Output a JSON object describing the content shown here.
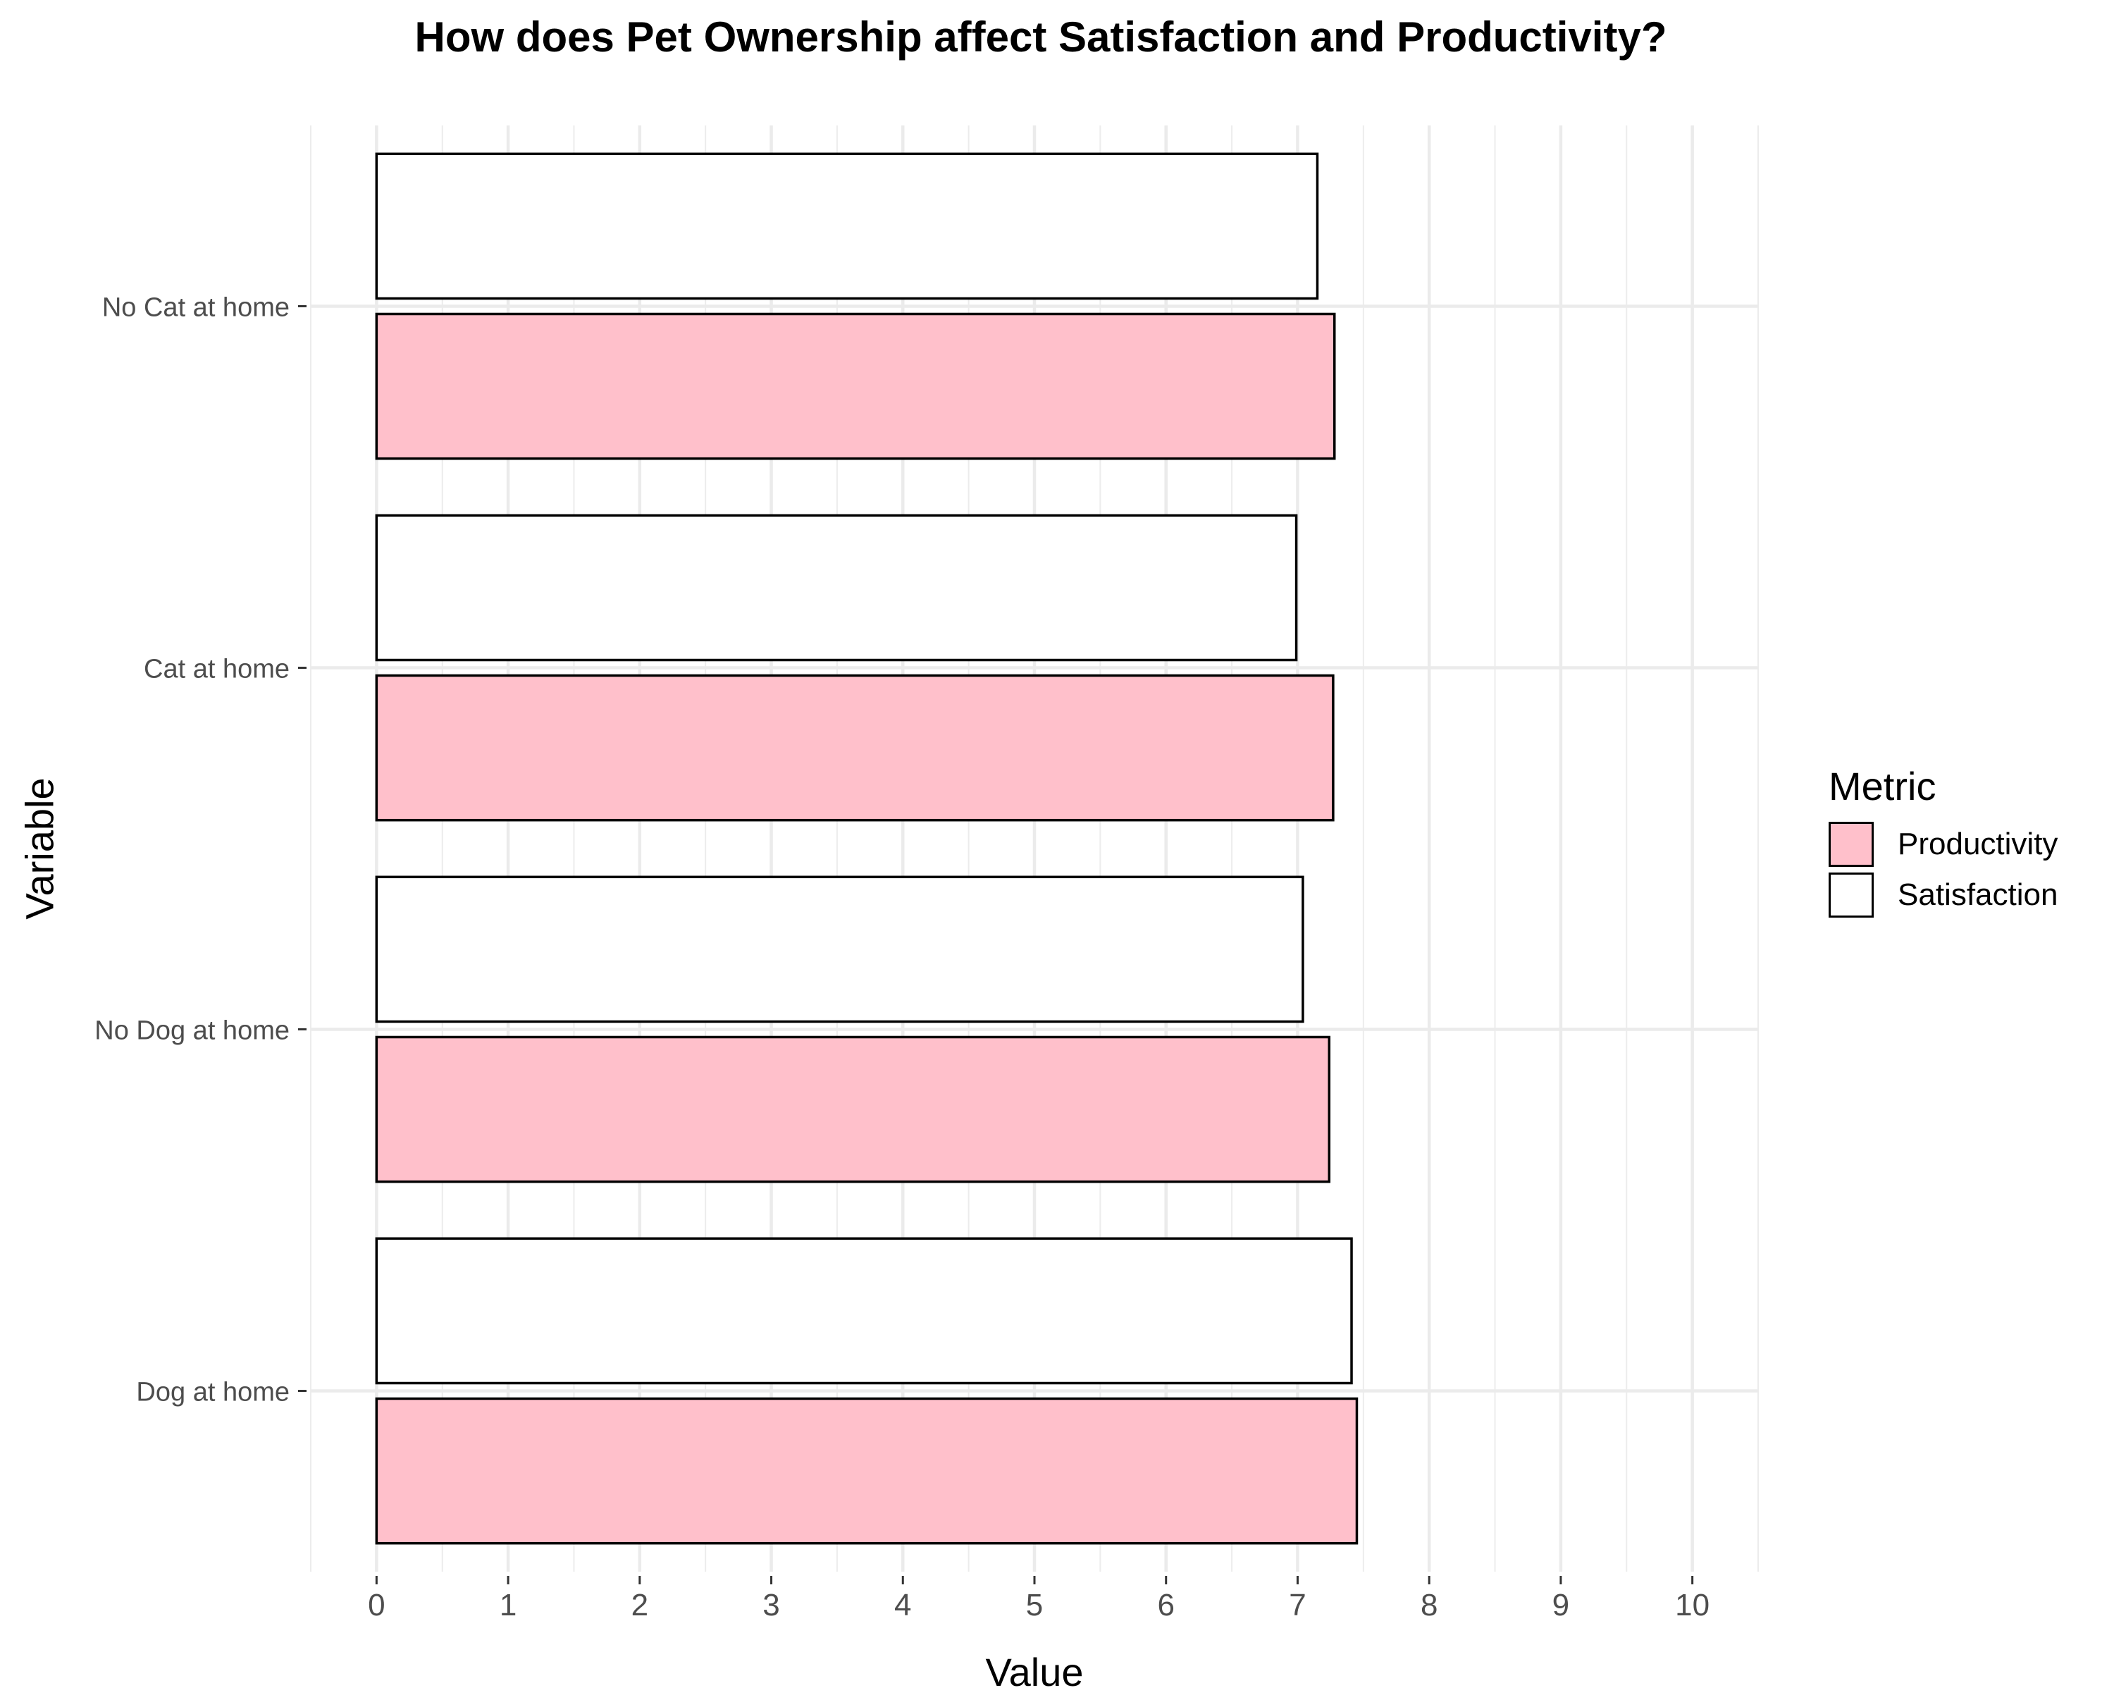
{
  "chart_data": {
    "type": "bar",
    "orientation": "horizontal",
    "title": "How does Pet Ownership affect Satisfaction and Productivity?",
    "xlabel": "Value",
    "ylabel": "Variable",
    "categories": [
      "No Cat at home",
      "Cat at home",
      "No Dog at home",
      "Dog at home"
    ],
    "series": [
      {
        "name": "Satisfaction",
        "values": [
          7.15,
          6.99,
          7.04,
          7.41
        ],
        "color": "#FFFFFF"
      },
      {
        "name": "Productivity",
        "values": [
          7.28,
          7.27,
          7.24,
          7.45
        ],
        "color": "#FFC0CB"
      }
    ],
    "xlim": [
      -0.5,
      10.5
    ],
    "xticks": [
      0,
      1,
      2,
      3,
      4,
      5,
      6,
      7,
      8,
      9,
      10
    ],
    "legend": {
      "title": "Metric",
      "placement": "right",
      "items": [
        {
          "label": "Productivity",
          "color": "#FFC0CB"
        },
        {
          "label": "Satisfaction",
          "color": "#FFFFFF"
        }
      ]
    },
    "grid": true
  }
}
